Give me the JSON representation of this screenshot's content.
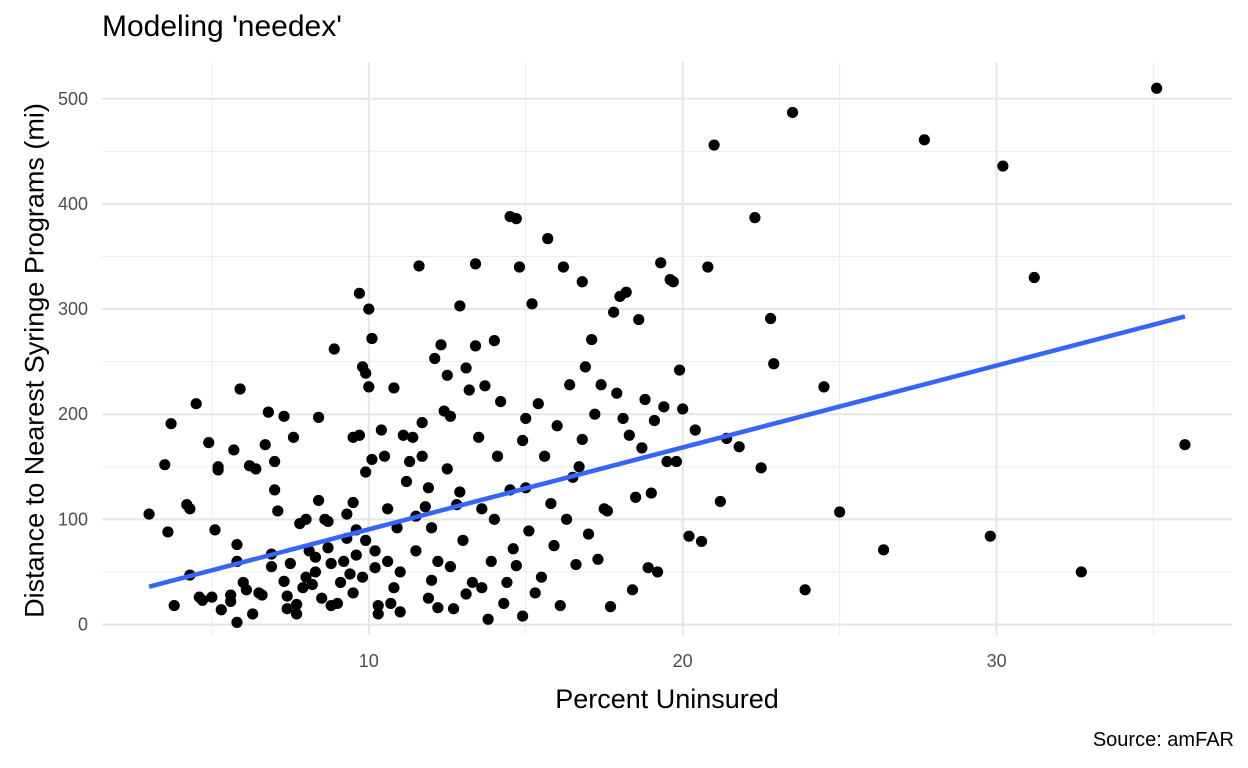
{
  "chart_data": {
    "type": "scatter",
    "title": "Modeling 'needex'",
    "caption": "Source: amFAR",
    "xlabel": "Percent Uninsured",
    "ylabel": "Distance to Nearest Syringe Programs (mi)",
    "xlim": [
      1.5,
      37.5
    ],
    "ylim": [
      -10,
      535
    ],
    "x_ticks": [
      10,
      20,
      30
    ],
    "y_ticks": [
      0,
      100,
      200,
      300,
      400,
      500
    ],
    "grid": true,
    "point_color": "#000000",
    "fit_color": "#3366FF",
    "fit_line": {
      "label": "",
      "x": [
        3,
        36
      ],
      "y": [
        36,
        293
      ]
    },
    "points": [
      [
        3.0,
        105
      ],
      [
        3.5,
        152
      ],
      [
        3.6,
        88
      ],
      [
        3.7,
        191
      ],
      [
        3.8,
        18
      ],
      [
        4.2,
        114
      ],
      [
        4.3,
        110
      ],
      [
        4.3,
        47
      ],
      [
        4.5,
        210
      ],
      [
        4.6,
        26
      ],
      [
        4.7,
        23
      ],
      [
        4.9,
        173
      ],
      [
        5.0,
        26
      ],
      [
        5.1,
        90
      ],
      [
        5.2,
        147
      ],
      [
        5.2,
        150
      ],
      [
        5.3,
        14
      ],
      [
        5.6,
        22
      ],
      [
        5.6,
        28
      ],
      [
        5.7,
        166
      ],
      [
        5.8,
        2
      ],
      [
        5.8,
        60
      ],
      [
        5.8,
        76
      ],
      [
        5.9,
        224
      ],
      [
        6.0,
        40
      ],
      [
        6.1,
        33
      ],
      [
        6.2,
        151
      ],
      [
        6.3,
        10
      ],
      [
        6.4,
        148
      ],
      [
        6.5,
        30
      ],
      [
        6.6,
        28
      ],
      [
        6.7,
        171
      ],
      [
        6.8,
        202
      ],
      [
        6.9,
        55
      ],
      [
        6.9,
        67
      ],
      [
        7.0,
        155
      ],
      [
        7.0,
        128
      ],
      [
        7.1,
        108
      ],
      [
        7.3,
        41
      ],
      [
        7.3,
        198
      ],
      [
        7.4,
        27
      ],
      [
        7.4,
        15
      ],
      [
        7.5,
        58
      ],
      [
        7.6,
        178
      ],
      [
        7.7,
        19
      ],
      [
        7.7,
        10
      ],
      [
        7.8,
        96
      ],
      [
        7.9,
        35
      ],
      [
        8.0,
        45
      ],
      [
        8.0,
        100
      ],
      [
        8.1,
        70
      ],
      [
        8.2,
        38
      ],
      [
        8.3,
        50
      ],
      [
        8.3,
        64
      ],
      [
        8.4,
        118
      ],
      [
        8.4,
        197
      ],
      [
        8.5,
        25
      ],
      [
        8.6,
        100
      ],
      [
        8.7,
        98
      ],
      [
        8.7,
        73
      ],
      [
        8.8,
        58
      ],
      [
        8.8,
        18
      ],
      [
        8.9,
        262
      ],
      [
        9.0,
        20
      ],
      [
        9.1,
        40
      ],
      [
        9.2,
        60
      ],
      [
        9.3,
        105
      ],
      [
        9.3,
        82
      ],
      [
        9.4,
        48
      ],
      [
        9.5,
        178
      ],
      [
        9.5,
        116
      ],
      [
        9.5,
        30
      ],
      [
        9.6,
        90
      ],
      [
        9.6,
        66
      ],
      [
        9.7,
        315
      ],
      [
        9.7,
        180
      ],
      [
        9.8,
        245
      ],
      [
        9.8,
        45
      ],
      [
        9.9,
        239
      ],
      [
        9.9,
        145
      ],
      [
        9.9,
        80
      ],
      [
        10.0,
        300
      ],
      [
        10.0,
        226
      ],
      [
        10.1,
        272
      ],
      [
        10.1,
        157
      ],
      [
        10.2,
        70
      ],
      [
        10.2,
        54
      ],
      [
        10.3,
        18
      ],
      [
        10.3,
        10
      ],
      [
        10.4,
        185
      ],
      [
        10.5,
        160
      ],
      [
        10.6,
        110
      ],
      [
        10.6,
        60
      ],
      [
        10.7,
        20
      ],
      [
        10.8,
        225
      ],
      [
        10.8,
        35
      ],
      [
        10.9,
        92
      ],
      [
        11.0,
        50
      ],
      [
        11.0,
        12
      ],
      [
        11.1,
        180
      ],
      [
        11.2,
        136
      ],
      [
        11.3,
        155
      ],
      [
        11.4,
        178
      ],
      [
        11.5,
        103
      ],
      [
        11.5,
        70
      ],
      [
        11.6,
        341
      ],
      [
        11.7,
        192
      ],
      [
        11.7,
        160
      ],
      [
        11.8,
        112
      ],
      [
        11.9,
        130
      ],
      [
        11.9,
        25
      ],
      [
        12.0,
        92
      ],
      [
        12.0,
        42
      ],
      [
        12.1,
        253
      ],
      [
        12.2,
        60
      ],
      [
        12.2,
        16
      ],
      [
        12.3,
        266
      ],
      [
        12.4,
        203
      ],
      [
        12.5,
        237
      ],
      [
        12.5,
        148
      ],
      [
        12.6,
        198
      ],
      [
        12.6,
        55
      ],
      [
        12.7,
        15
      ],
      [
        12.8,
        114
      ],
      [
        12.9,
        303
      ],
      [
        12.9,
        126
      ],
      [
        13.0,
        80
      ],
      [
        13.1,
        244
      ],
      [
        13.1,
        29
      ],
      [
        13.2,
        223
      ],
      [
        13.3,
        40
      ],
      [
        13.4,
        343
      ],
      [
        13.4,
        265
      ],
      [
        13.5,
        178
      ],
      [
        13.6,
        110
      ],
      [
        13.6,
        35
      ],
      [
        13.7,
        227
      ],
      [
        13.8,
        5
      ],
      [
        13.9,
        60
      ],
      [
        14.0,
        270
      ],
      [
        14.0,
        100
      ],
      [
        14.1,
        160
      ],
      [
        14.2,
        212
      ],
      [
        14.3,
        20
      ],
      [
        14.4,
        40
      ],
      [
        14.5,
        388
      ],
      [
        14.5,
        128
      ],
      [
        14.6,
        72
      ],
      [
        14.7,
        386
      ],
      [
        14.7,
        56
      ],
      [
        14.8,
        340
      ],
      [
        14.9,
        175
      ],
      [
        14.9,
        8
      ],
      [
        15.0,
        196
      ],
      [
        15.0,
        130
      ],
      [
        15.1,
        89
      ],
      [
        15.2,
        305
      ],
      [
        15.3,
        30
      ],
      [
        15.4,
        210
      ],
      [
        15.5,
        45
      ],
      [
        15.6,
        160
      ],
      [
        15.7,
        367
      ],
      [
        15.8,
        115
      ],
      [
        15.9,
        75
      ],
      [
        16.0,
        189
      ],
      [
        16.1,
        18
      ],
      [
        16.2,
        340
      ],
      [
        16.3,
        100
      ],
      [
        16.4,
        228
      ],
      [
        16.5,
        140
      ],
      [
        16.6,
        57
      ],
      [
        16.7,
        150
      ],
      [
        16.8,
        326
      ],
      [
        16.8,
        176
      ],
      [
        16.9,
        245
      ],
      [
        17.0,
        86
      ],
      [
        17.1,
        271
      ],
      [
        17.2,
        200
      ],
      [
        17.3,
        62
      ],
      [
        17.4,
        228
      ],
      [
        17.5,
        110
      ],
      [
        17.6,
        108
      ],
      [
        17.7,
        17
      ],
      [
        17.8,
        297
      ],
      [
        17.9,
        220
      ],
      [
        18.0,
        312
      ],
      [
        18.1,
        196
      ],
      [
        18.2,
        316
      ],
      [
        18.3,
        180
      ],
      [
        18.4,
        33
      ],
      [
        18.5,
        121
      ],
      [
        18.6,
        290
      ],
      [
        18.7,
        168
      ],
      [
        18.8,
        214
      ],
      [
        18.9,
        54
      ],
      [
        19.0,
        125
      ],
      [
        19.1,
        194
      ],
      [
        19.2,
        50
      ],
      [
        19.3,
        344
      ],
      [
        19.4,
        207
      ],
      [
        19.5,
        155
      ],
      [
        19.6,
        328
      ],
      [
        19.7,
        326
      ],
      [
        19.8,
        155
      ],
      [
        19.9,
        242
      ],
      [
        20.0,
        205
      ],
      [
        20.2,
        84
      ],
      [
        20.4,
        185
      ],
      [
        20.6,
        79
      ],
      [
        20.8,
        340
      ],
      [
        21.0,
        456
      ],
      [
        21.2,
        117
      ],
      [
        21.4,
        177
      ],
      [
        21.8,
        169
      ],
      [
        22.3,
        387
      ],
      [
        22.5,
        149
      ],
      [
        22.8,
        291
      ],
      [
        22.9,
        248
      ],
      [
        23.5,
        487
      ],
      [
        23.9,
        33
      ],
      [
        24.5,
        226
      ],
      [
        25.0,
        107
      ],
      [
        26.4,
        71
      ],
      [
        27.7,
        461
      ],
      [
        29.8,
        84
      ],
      [
        30.2,
        436
      ],
      [
        31.2,
        330
      ],
      [
        32.7,
        50
      ],
      [
        35.1,
        510
      ],
      [
        36.0,
        171
      ]
    ]
  }
}
